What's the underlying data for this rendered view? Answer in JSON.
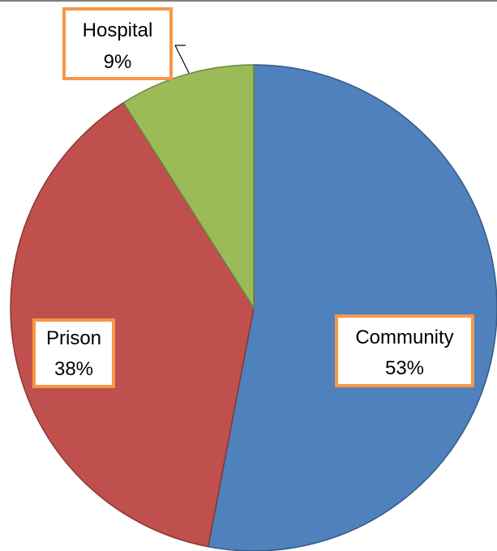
{
  "chart_data": {
    "type": "pie",
    "slices": [
      {
        "label": "Community",
        "value": 53,
        "display": "53%",
        "color": "#4f81bd"
      },
      {
        "label": "Prison",
        "value": 38,
        "display": "38%",
        "color": "#c0504d"
      },
      {
        "label": "Hospital",
        "value": 9,
        "display": "9%",
        "color": "#9bbb59"
      }
    ],
    "title": "",
    "legend": "none",
    "start_angle_deg": 0,
    "direction": "clockwise",
    "label_border_color": "#f79646"
  }
}
